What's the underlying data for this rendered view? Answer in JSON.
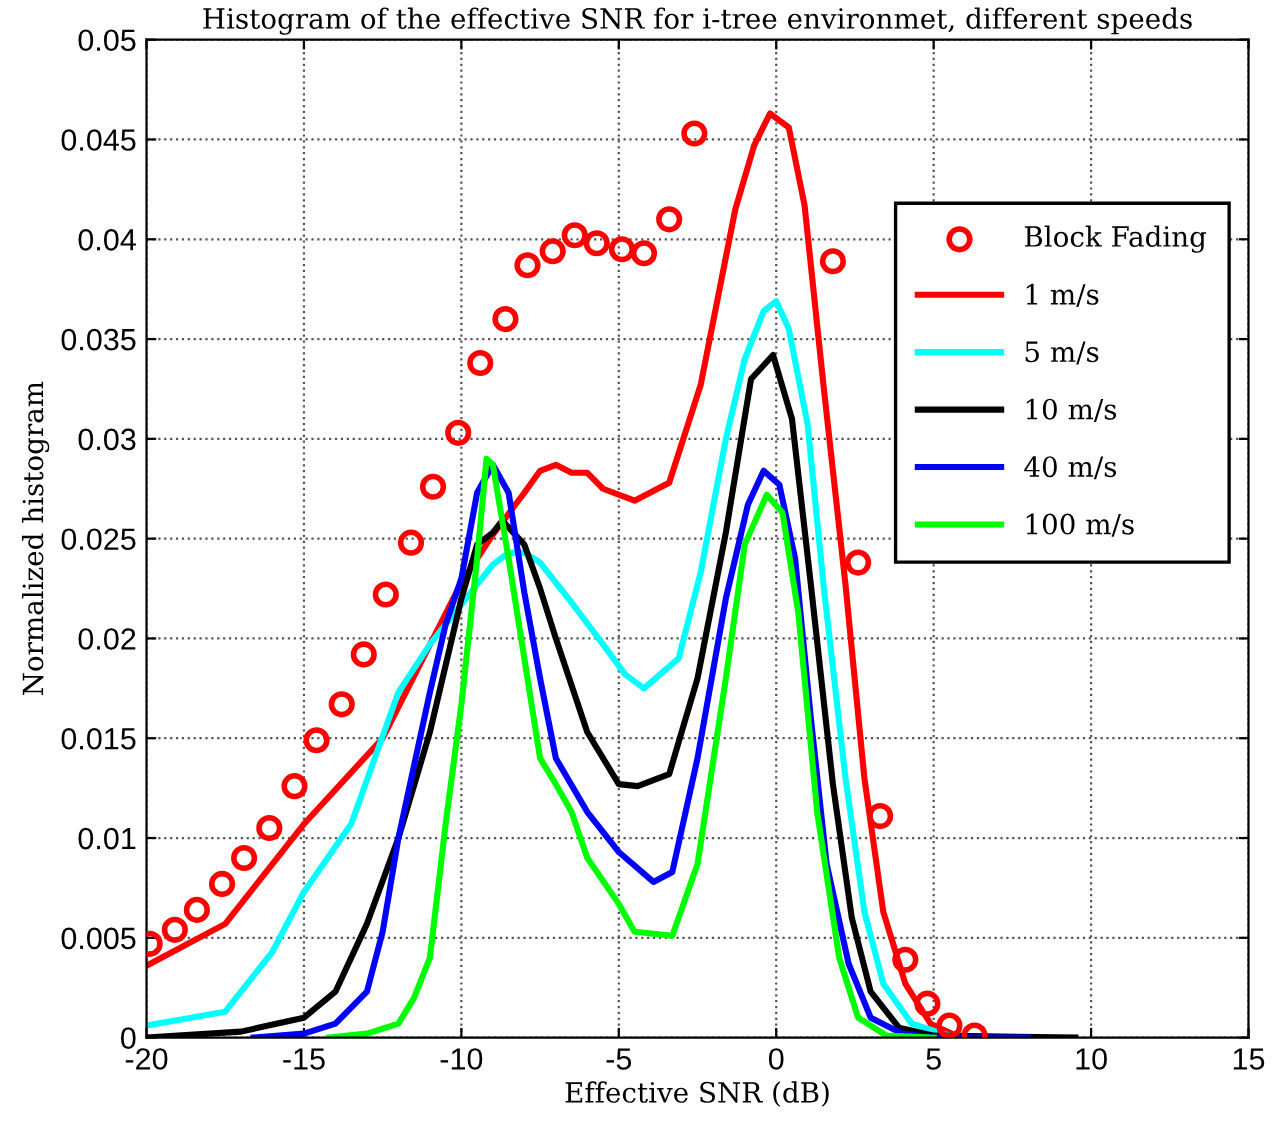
{
  "chart_data": {
    "type": "line",
    "title": "Histogram of the effective SNR for i-tree environmet, different speeds",
    "xlabel": "Effective SNR (dB)",
    "ylabel": "Normalized histogram",
    "xlim": [
      -20,
      15
    ],
    "ylim": [
      0,
      0.05
    ],
    "xticks": [
      -20,
      -15,
      -10,
      -5,
      0,
      5,
      10,
      15
    ],
    "yticks": [
      0,
      0.005,
      0.01,
      0.015,
      0.02,
      0.025,
      0.03,
      0.035,
      0.04,
      0.045,
      0.05
    ],
    "grid": true,
    "legend": "top right",
    "series": [
      {
        "name": "Block Fading",
        "type": "scatter",
        "marker": "circle",
        "color": "#ff0000",
        "x": [
          -19.9,
          -19.1,
          -18.4,
          -17.6,
          -16.9,
          -16.1,
          -15.3,
          -14.6,
          -13.8,
          -13.1,
          -12.4,
          -11.6,
          -10.9,
          -10.1,
          -9.4,
          -8.6,
          -7.9,
          -7.1,
          -6.4,
          -5.7,
          -4.9,
          -4.2,
          -3.4,
          -2.6,
          1.8,
          2.6,
          3.3,
          4.1,
          4.8,
          5.5,
          6.3
        ],
        "values": [
          0.0047,
          0.0054,
          0.0064,
          0.0077,
          0.009,
          0.0105,
          0.0126,
          0.0149,
          0.0167,
          0.0192,
          0.0222,
          0.0248,
          0.0276,
          0.0303,
          0.0338,
          0.036,
          0.0387,
          0.0394,
          0.0402,
          0.0398,
          0.0395,
          0.0393,
          0.041,
          0.0453,
          0.0389,
          0.0238,
          0.0111,
          0.0039,
          0.0017,
          0.0006,
          0.0001
        ]
      },
      {
        "name": "1 m/s",
        "color": "#ff0000",
        "x": [
          -20,
          -17.5,
          -15,
          -12.5,
          -10,
          -9,
          -8,
          -7.5,
          -7,
          -6.5,
          -6,
          -5.5,
          -4.5,
          -3.4,
          -2.4,
          -1.3,
          -0.7,
          -0.2,
          0.4,
          0.9,
          1.5,
          2.2,
          2.8,
          3.4,
          4.1,
          4.9,
          5.7,
          7
        ],
        "values": [
          0.0036,
          0.0057,
          0.0107,
          0.015,
          0.0228,
          0.0252,
          0.0273,
          0.0284,
          0.0287,
          0.0283,
          0.0283,
          0.0275,
          0.0269,
          0.0278,
          0.0327,
          0.0415,
          0.0447,
          0.0463,
          0.0456,
          0.0417,
          0.0327,
          0.0227,
          0.013,
          0.0063,
          0.0027,
          0.0007,
          0.0001,
          0
        ]
      },
      {
        "name": "5 m/s",
        "color": "#00ffff",
        "x": [
          -20,
          -17.5,
          -16,
          -15,
          -13.5,
          -12,
          -11,
          -10,
          -9,
          -8.5,
          -8,
          -7.5,
          -6.5,
          -5.5,
          -4.8,
          -4.2,
          -3.1,
          -2.4,
          -1.6,
          -1,
          -0.4,
          0,
          0.4,
          1,
          1.5,
          2.2,
          2.8,
          3.4,
          4.3,
          5.5,
          7
        ],
        "values": [
          0.0006,
          0.0013,
          0.0043,
          0.0073,
          0.0107,
          0.0173,
          0.0197,
          0.0217,
          0.0237,
          0.0243,
          0.0243,
          0.0238,
          0.0218,
          0.0197,
          0.0182,
          0.0175,
          0.019,
          0.0233,
          0.03,
          0.034,
          0.0364,
          0.0369,
          0.0355,
          0.0307,
          0.0227,
          0.013,
          0.0063,
          0.0027,
          0.0007,
          0.0001,
          0
        ]
      },
      {
        "name": "10 m/s",
        "color": "#000000",
        "x": [
          -20,
          -17,
          -15,
          -14,
          -13,
          -12,
          -11,
          -10,
          -9.5,
          -9,
          -8.7,
          -8,
          -7.5,
          -7,
          -6,
          -5,
          -4.4,
          -3.4,
          -2.5,
          -1.6,
          -0.8,
          -0.1,
          0.5,
          1.1,
          1.8,
          2.4,
          3,
          3.9,
          5,
          9.5
        ],
        "values": [
          0,
          0.0003,
          0.001,
          0.0023,
          0.0057,
          0.01,
          0.0153,
          0.022,
          0.0247,
          0.0253,
          0.0259,
          0.0247,
          0.0225,
          0.02,
          0.0153,
          0.0127,
          0.0126,
          0.0132,
          0.018,
          0.0253,
          0.033,
          0.0342,
          0.031,
          0.0227,
          0.0127,
          0.006,
          0.0023,
          0.0005,
          0.0001,
          0
        ]
      },
      {
        "name": "40 m/s",
        "color": "#0000ff",
        "x": [
          -16.6,
          -15,
          -14,
          -13,
          -12.5,
          -12,
          -11,
          -10.5,
          -10,
          -9.5,
          -9,
          -8.5,
          -8,
          -7.5,
          -7,
          -6,
          -5,
          -3.9,
          -3.3,
          -2.5,
          -1.6,
          -0.9,
          -0.4,
          0.1,
          0.6,
          1.1,
          1.6,
          2.3,
          3,
          4,
          5,
          8
        ],
        "values": [
          0,
          0.0002,
          0.0007,
          0.0023,
          0.0053,
          0.01,
          0.0173,
          0.0207,
          0.023,
          0.0273,
          0.0287,
          0.0273,
          0.0223,
          0.018,
          0.014,
          0.0113,
          0.0093,
          0.0078,
          0.0083,
          0.014,
          0.022,
          0.0267,
          0.0284,
          0.0277,
          0.024,
          0.016,
          0.0087,
          0.0037,
          0.001,
          0.0002,
          0,
          0
        ]
      },
      {
        "name": "100 m/s",
        "color": "#00ff00",
        "x": [
          -14.2,
          -13,
          -12,
          -11.5,
          -11,
          -10.5,
          -10,
          -9.5,
          -9.2,
          -9,
          -8.5,
          -8,
          -7.5,
          -7,
          -6.5,
          -6,
          -5,
          -4.5,
          -3.3,
          -2.5,
          -1.6,
          -1,
          -0.3,
          0.2,
          0.7,
          1.3,
          2,
          2.6,
          3.5,
          5
        ],
        "values": [
          0,
          0.0002,
          0.0007,
          0.002,
          0.004,
          0.0107,
          0.0167,
          0.024,
          0.029,
          0.0287,
          0.024,
          0.019,
          0.014,
          0.0127,
          0.0113,
          0.009,
          0.0067,
          0.0053,
          0.0051,
          0.0087,
          0.018,
          0.0247,
          0.0272,
          0.0263,
          0.0213,
          0.0113,
          0.004,
          0.001,
          0.0001,
          0
        ]
      }
    ]
  }
}
